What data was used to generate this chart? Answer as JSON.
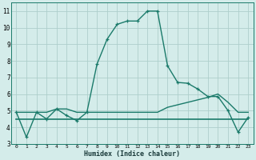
{
  "xlabel": "Humidex (Indice chaleur)",
  "background_color": "#d4ecea",
  "grid_color": "#aecfcc",
  "line_color": "#1a7a6a",
  "xlim": [
    -0.5,
    23.5
  ],
  "ylim": [
    3.0,
    11.5
  ],
  "yticks": [
    3,
    4,
    5,
    6,
    7,
    8,
    9,
    10,
    11
  ],
  "xticks": [
    0,
    1,
    2,
    3,
    4,
    5,
    6,
    7,
    8,
    9,
    10,
    11,
    12,
    13,
    14,
    15,
    16,
    17,
    18,
    19,
    20,
    21,
    22,
    23
  ],
  "xtick_labels": [
    "0",
    "1",
    "2",
    "3",
    "4",
    "5",
    "6",
    "7",
    "8",
    "9",
    "10",
    "11",
    "12",
    "13",
    "14",
    "15",
    "16",
    "17",
    "18",
    "19",
    "20",
    "21",
    "22",
    "23"
  ],
  "curve1_x": [
    0,
    1,
    2,
    3,
    4,
    5,
    6,
    7,
    8,
    9,
    10,
    11,
    12,
    13,
    14,
    15,
    16,
    17,
    18,
    19,
    20,
    21,
    22,
    23
  ],
  "curve1_y": [
    4.9,
    3.4,
    4.9,
    4.5,
    5.1,
    4.7,
    4.4,
    4.9,
    7.8,
    9.3,
    10.2,
    10.4,
    10.4,
    11.0,
    11.0,
    7.7,
    6.7,
    6.65,
    6.3,
    5.85,
    5.85,
    5.0,
    3.7,
    4.6
  ],
  "curve2_x": [
    0,
    1,
    2,
    3,
    4,
    5,
    6,
    7,
    8,
    9,
    10,
    11,
    12,
    13,
    14,
    15,
    16,
    17,
    18,
    19,
    20,
    21,
    22,
    23
  ],
  "curve2_y": [
    4.9,
    4.9,
    4.9,
    4.9,
    5.1,
    5.1,
    4.9,
    4.9,
    4.9,
    4.9,
    4.9,
    4.9,
    4.9,
    4.9,
    4.9,
    5.2,
    5.35,
    5.5,
    5.65,
    5.8,
    6.0,
    5.5,
    4.9,
    4.9
  ],
  "curve3_x": [
    0,
    1,
    2,
    3,
    4,
    5,
    6,
    7,
    8,
    9,
    10,
    11,
    12,
    13,
    14,
    15,
    16,
    17,
    18,
    19,
    20,
    21,
    22,
    23
  ],
  "curve3_y": [
    4.5,
    4.5,
    4.5,
    4.5,
    4.5,
    4.5,
    4.5,
    4.5,
    4.5,
    4.5,
    4.5,
    4.5,
    4.5,
    4.5,
    4.5,
    4.5,
    4.5,
    4.5,
    4.5,
    4.5,
    4.5,
    4.5,
    4.5,
    4.5
  ]
}
